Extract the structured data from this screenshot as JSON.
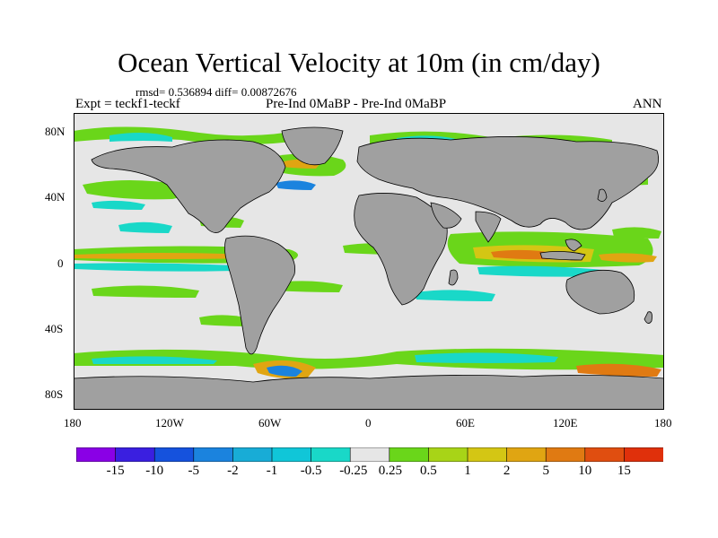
{
  "title": "Ocean Vertical Velocity at 10m (in cm/day)",
  "stats": "rmsd= 0.536894 diff= 0.00872676",
  "left_string": "Expt = teckf1-teckf",
  "center_string": "Pre-Ind 0MaBP - Pre-Ind 0MaBP",
  "right_string": "ANN",
  "map": {
    "projection": "cylindrical-equidistant",
    "lon_range": [
      -180,
      180
    ],
    "lat_range": [
      -90,
      90
    ],
    "land_color": "#a0a0a0",
    "ocean_neutral_color": "#e6e6e6",
    "lat_labels": [
      "80N",
      "40N",
      "0",
      "40S",
      "80S"
    ],
    "lon_labels": [
      "180",
      "120W",
      "60W",
      "0",
      "60E",
      "120E",
      "180"
    ]
  },
  "colorbar": {
    "labels": [
      "-15",
      "-10",
      "-5",
      "-2",
      "-1",
      "-0.5",
      "-0.25",
      "0.25",
      "0.5",
      "1",
      "2",
      "5",
      "10",
      "15"
    ],
    "colors": [
      "#8a00e6",
      "#3a1fe0",
      "#1552dd",
      "#1b83de",
      "#18acd6",
      "#10c6d8",
      "#19d8c8",
      "#e6e6e6",
      "#6ad61a",
      "#a8d417",
      "#d4c614",
      "#e0a512",
      "#e07a12",
      "#e04e10",
      "#e0300b"
    ]
  }
}
